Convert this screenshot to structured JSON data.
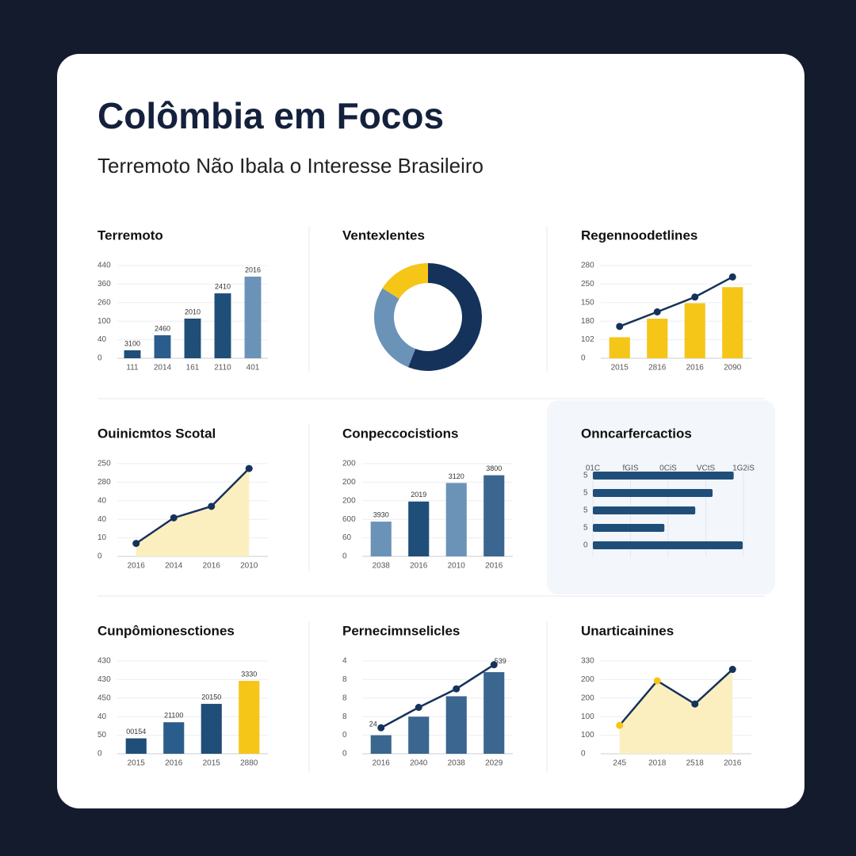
{
  "title": "Colômbia em Focos",
  "subtitle": "Terremoto Não Ibala o Interesse Brasileiro",
  "chart_data": [
    {
      "type": "bar",
      "title": "Terremoto",
      "categories": [
        "111",
        "2014",
        "161",
        "2110",
        "401"
      ],
      "values": [
        43,
        124,
        214,
        350,
        440
      ],
      "colors": [
        "#1f4e79",
        "#2b5d8c",
        "#1f4e79",
        "#1f4e79",
        "#6b93b8"
      ],
      "annotations": [
        "3100",
        "2460",
        "2010",
        "2410",
        "2016"
      ],
      "ylim": [
        0,
        500
      ],
      "yticks": [
        0,
        {
          "value": 100,
          "label": "40"
        },
        {
          "value": 200,
          "label": "100"
        },
        {
          "value": 300,
          "label": "260"
        },
        {
          "value": 400,
          "label": "360"
        },
        {
          "value": 500,
          "label": "440"
        }
      ],
      "grid": true
    },
    {
      "type": "donut",
      "title": "Ventexlentes",
      "categories": [
        null,
        null,
        null
      ],
      "values": [
        56,
        28,
        16
      ],
      "colors": [
        "#15325a",
        "#6b93b8",
        "#f5c518"
      ]
    },
    {
      "type": "combo",
      "title": "Regennoodetlines",
      "categories": [
        "2015",
        "2816",
        "2016",
        "2090"
      ],
      "series": [
        {
          "type": "bar",
          "color": "#f5c518",
          "values": [
            68,
            128,
            178,
            230
          ]
        },
        {
          "type": "line",
          "color": "#15325a",
          "values": [
            103,
            150,
            198,
            263
          ]
        }
      ],
      "ylim": [
        0,
        300
      ],
      "yticks": [
        0,
        {
          "value": 60,
          "label": "102"
        },
        {
          "value": 120,
          "label": "180"
        },
        {
          "value": 180,
          "label": "150"
        },
        {
          "value": 240,
          "label": "250"
        },
        {
          "value": 300,
          "label": "280"
        }
      ],
      "grid": true
    },
    {
      "type": "area",
      "title": "Ouinicmtos Scotal",
      "categories": [
        "2016",
        "2014",
        "2016",
        "2010"
      ],
      "values": [
        35,
        104,
        135,
        237
      ],
      "color": "#15325a",
      "fill": "#fbefc0",
      "ylim": [
        0,
        250
      ],
      "yticks": [
        0,
        {
          "value": 50,
          "label": "10"
        },
        {
          "value": 100,
          "label": "40"
        },
        {
          "value": 150,
          "label": "40"
        },
        {
          "value": 200,
          "label": "280"
        },
        250
      ],
      "grid": true
    },
    {
      "type": "bar",
      "title": "Conpeccocistions",
      "categories": [
        "2038",
        "2016",
        "2010",
        "2016"
      ],
      "values": [
        225,
        355,
        475,
        525
      ],
      "colors": [
        "#6b93b8",
        "#1f4e79",
        "#6b93b8",
        "#3a6690"
      ],
      "annotations": [
        "3930",
        "2019",
        "3120",
        "3800"
      ],
      "ylim": [
        0,
        600
      ],
      "yticks": [
        0,
        {
          "value": 120,
          "label": "60"
        },
        {
          "value": 240,
          "label": "600"
        },
        {
          "value": 360,
          "label": "200"
        },
        {
          "value": 480,
          "label": "200"
        },
        {
          "value": 600,
          "label": "200"
        }
      ],
      "grid": true
    },
    {
      "type": "hbar",
      "title": "Onncarfercactios",
      "categories": [
        "5",
        "5",
        "5",
        "5",
        "0"
      ],
      "values": [
        187,
        159,
        136,
        95,
        199
      ],
      "color": "#1f4e79",
      "xlim": [
        0,
        200
      ],
      "xticks": [
        {
          "value": 0,
          "label": "01C"
        },
        {
          "value": 50,
          "label": "fGIS"
        },
        {
          "value": 100,
          "label": "0CiS"
        },
        {
          "value": 150,
          "label": "VCtS"
        },
        {
          "value": 200,
          "label": "1G2iS"
        }
      ],
      "grid": true
    },
    {
      "type": "bar",
      "title": "Cunpômionesctiones",
      "categories": [
        "2015",
        "2016",
        "2015",
        "2880"
      ],
      "values": [
        83,
        170,
        269,
        393
      ],
      "colors": [
        "#1f4e79",
        "#2b5d8c",
        "#1f4e79",
        "#f5c518"
      ],
      "annotations": [
        "00154",
        "21100",
        "20150",
        "3330"
      ],
      "ylim": [
        0,
        500
      ],
      "yticks": [
        0,
        {
          "value": 100,
          "label": "50"
        },
        {
          "value": 200,
          "label": "40"
        },
        {
          "value": 300,
          "label": "450"
        },
        {
          "value": 400,
          "label": "430"
        },
        {
          "value": 500,
          "label": "430"
        }
      ],
      "grid": true
    },
    {
      "type": "combo",
      "title": "Pernecimnselicles",
      "categories": [
        "2016",
        "2040",
        "2038",
        "2029"
      ],
      "series": [
        {
          "type": "bar",
          "color": "#3a6690",
          "values": [
            1.0,
            2.0,
            3.1,
            4.4
          ]
        },
        {
          "type": "line",
          "color": "#15325a",
          "values": [
            1.4,
            2.5,
            3.5,
            4.8
          ]
        }
      ],
      "annotations": [
        "24",
        "539"
      ],
      "ylim": [
        0,
        5
      ],
      "yticks": [
        0,
        {
          "value": 1,
          "label": "0"
        },
        {
          "value": 2,
          "label": "8"
        },
        {
          "value": 3,
          "label": "8"
        },
        {
          "value": 4,
          "label": "8"
        },
        {
          "value": 5,
          "label": "4"
        }
      ],
      "grid": true
    },
    {
      "type": "area",
      "title": "Unarticainines",
      "categories": [
        "245",
        "2018",
        "2518",
        "2016"
      ],
      "values": [
        92,
        236,
        161,
        273
      ],
      "color": "#15325a",
      "fill": "#fbefc0",
      "point_colors": [
        "#f5c518",
        "#f5c518",
        "#15325a",
        "#15325a"
      ],
      "ylim": [
        0,
        300
      ],
      "yticks": [
        0,
        {
          "value": 60,
          "label": "100"
        },
        {
          "value": 120,
          "label": "100"
        },
        {
          "value": 180,
          "label": "200"
        },
        {
          "value": 240,
          "label": "200"
        },
        {
          "value": 300,
          "label": "330"
        }
      ],
      "grid": true
    }
  ]
}
